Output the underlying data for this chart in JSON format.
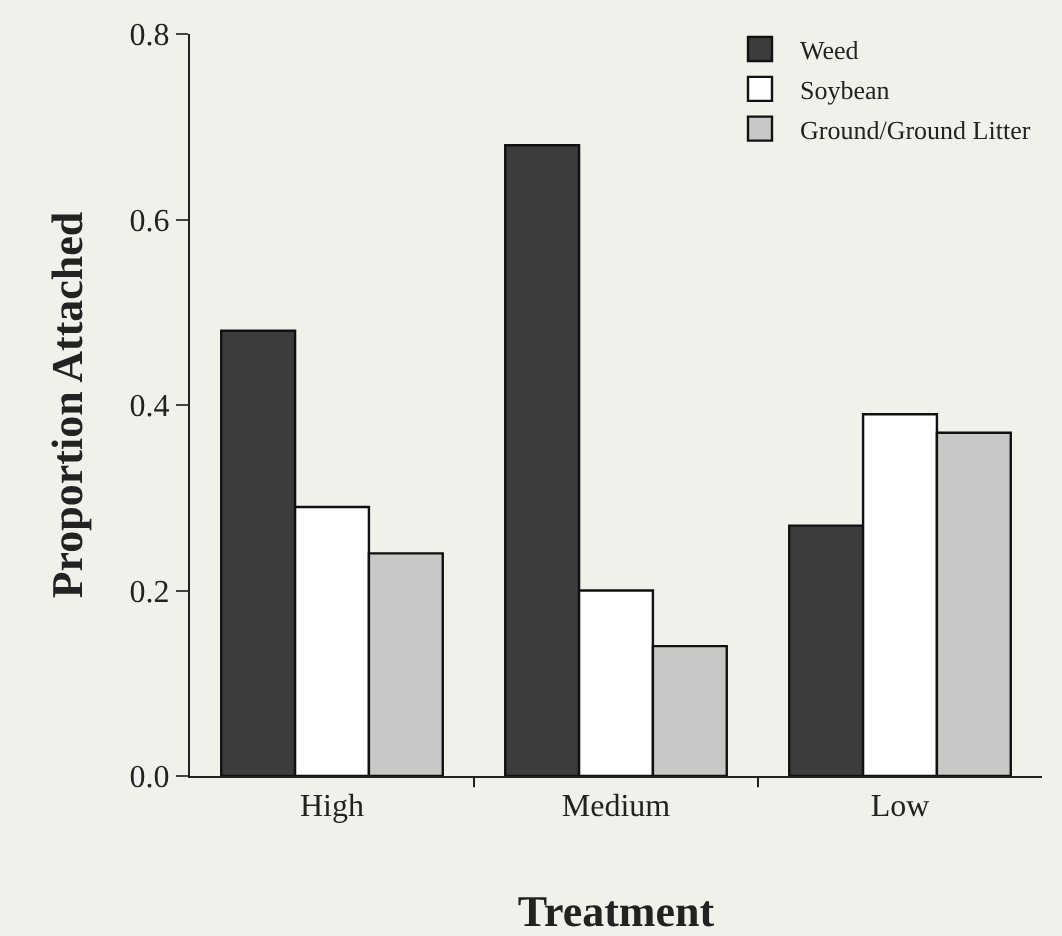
{
  "chart_data": {
    "type": "bar",
    "xlabel": "Treatment",
    "ylabel": "Proportion Attached",
    "categories": [
      "High",
      "Medium",
      "Low"
    ],
    "series": [
      {
        "name": "Weed",
        "color": "#3c3c3c",
        "values": [
          0.48,
          0.68,
          0.27
        ]
      },
      {
        "name": "Soybean",
        "color": "#ffffff",
        "values": [
          0.29,
          0.2,
          0.39
        ]
      },
      {
        "name": "Ground/Ground Litter",
        "color": "#c8c8c6",
        "values": [
          0.24,
          0.14,
          0.37
        ]
      }
    ],
    "ylim": [
      0,
      0.8
    ],
    "yticks": [
      {
        "value": 0,
        "label": "0.0"
      },
      0.2,
      0.4,
      0.6,
      0.8
    ],
    "grid": false,
    "legend": "top right"
  }
}
